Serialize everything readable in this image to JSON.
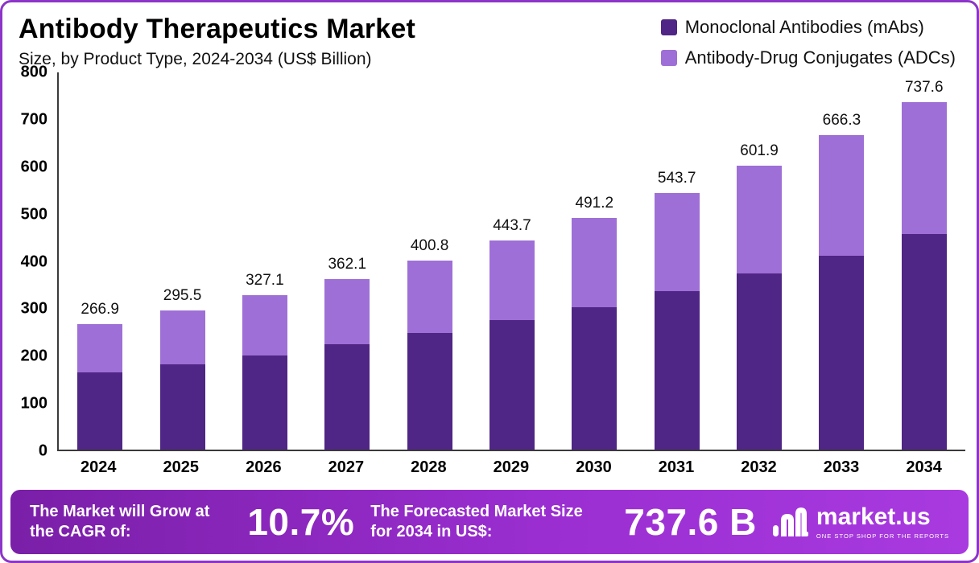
{
  "header": {
    "title": "Antibody Therapeutics Market",
    "subtitle": "Size, by Product Type, 2024-2034 (US$ Billion)"
  },
  "legend": {
    "items": [
      {
        "label": "Monoclonal Antibodies (mAbs)",
        "color": "#4f2585"
      },
      {
        "label": "Antibody-Drug Conjugates (ADCs)",
        "color": "#9e6fd6"
      }
    ]
  },
  "chart_data": {
    "type": "bar",
    "stacked": true,
    "title": "Antibody Therapeutics Market Size, by Product Type, 2024-2034 (US$ Billion)",
    "categories": [
      "2024",
      "2025",
      "2026",
      "2027",
      "2028",
      "2029",
      "2030",
      "2031",
      "2032",
      "2033",
      "2034"
    ],
    "series": [
      {
        "name": "Monoclonal Antibodies (mAbs)",
        "color": "#4f2585",
        "values": [
          164,
          181,
          200,
          223,
          247,
          274,
          302,
          336,
          373,
          412,
          458
        ]
      },
      {
        "name": "Antibody-Drug Conjugates (ADCs)",
        "color": "#9e6fd6",
        "values": [
          102.9,
          114.5,
          127.1,
          139.1,
          153.8,
          169.7,
          189.2,
          207.7,
          228.9,
          254.3,
          279.6
        ]
      }
    ],
    "totals": [
      266.9,
      295.5,
      327.1,
      362.1,
      400.8,
      443.7,
      491.2,
      543.7,
      601.9,
      666.3,
      737.6
    ],
    "total_labels": [
      "266.9",
      "295.5",
      "327.1",
      "362.1",
      "400.8",
      "443.7",
      "491.2",
      "543.7",
      "601.9",
      "666.3",
      "737.6"
    ],
    "xlabel": "",
    "ylabel": "",
    "ylim": [
      0,
      800
    ],
    "yticks": [
      0,
      100,
      200,
      300,
      400,
      500,
      600,
      700,
      800
    ],
    "grid": false,
    "legend_position": "top-right"
  },
  "banner": {
    "cagr_label": "The Market will Grow at the CAGR of:",
    "cagr_value": "10.7%",
    "forecast_label": "The Forecasted Market Size for 2034 in US$:",
    "forecast_value": "737.6 B",
    "logo_text": "market.us",
    "logo_tagline": "ONE STOP SHOP FOR THE REPORTS"
  }
}
